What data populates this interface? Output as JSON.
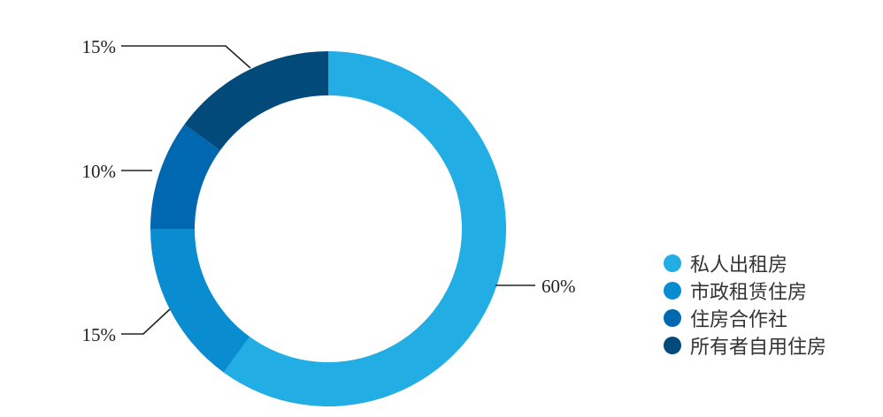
{
  "chart_data": {
    "type": "pie",
    "donut": true,
    "categories": [
      "私人出租房",
      "市政租赁住房",
      "住房合作社",
      "所有者自用住房"
    ],
    "values": [
      60,
      15,
      10,
      15
    ],
    "data_labels": [
      "60%",
      "15%",
      "10%",
      "15%"
    ],
    "colors": [
      "#22aee4",
      "#0a8dd0",
      "#0068b0",
      "#024a7a"
    ],
    "legend_position": "right"
  }
}
